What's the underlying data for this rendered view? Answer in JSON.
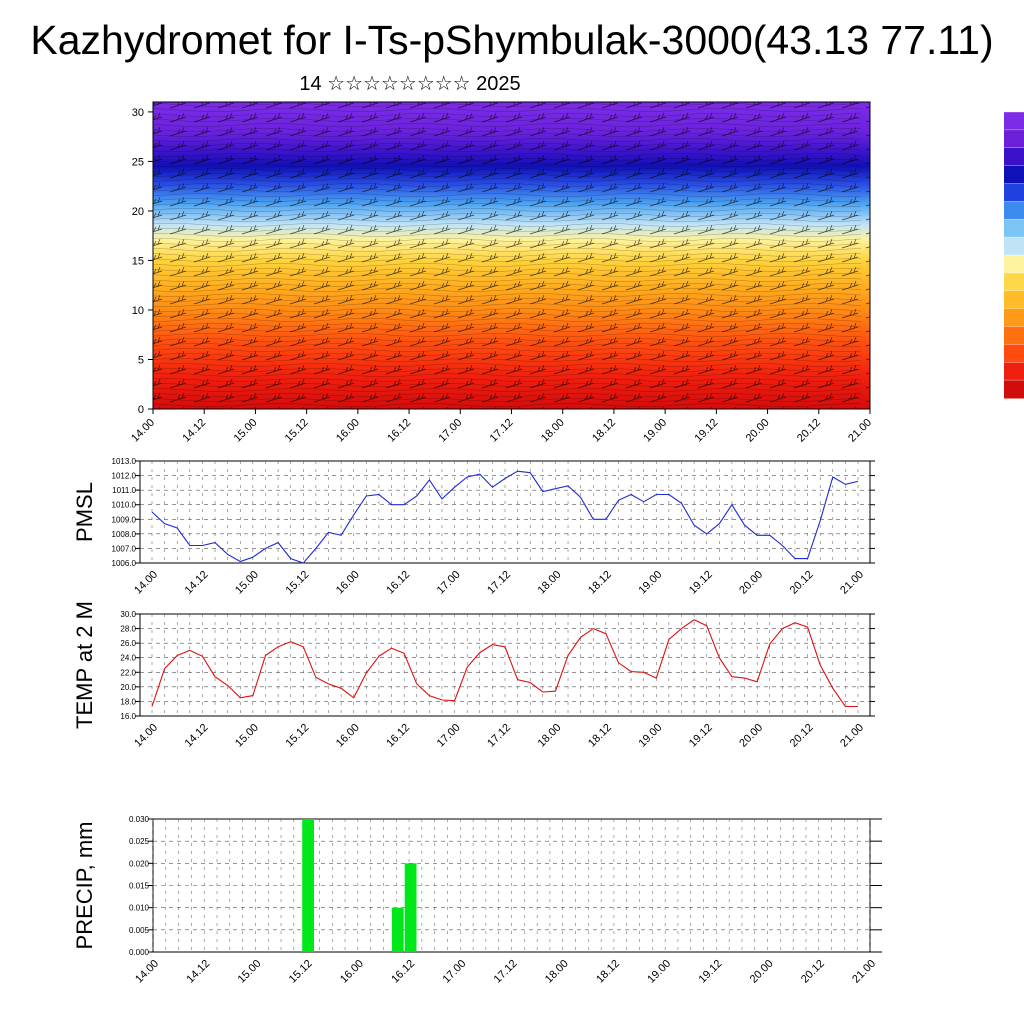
{
  "page": {
    "title": "Kazhydromet for I-Ts-pShymbulak-3000(43.13 77.11)",
    "subtitle": "14 ☆☆☆☆☆☆☆☆ 2025"
  },
  "colors": {
    "pmsl_line": "#1f2bd6",
    "temp_line": "#e01010",
    "precip_bar": "#00e81a",
    "grid": "#555555"
  },
  "time_axis": {
    "labels": [
      "14.00",
      "14.12",
      "15.00",
      "15.12",
      "16.00",
      "16.12",
      "17.00",
      "17.12",
      "18.00",
      "18.12",
      "19.00",
      "19.12",
      "20.00",
      "20.12",
      "21.00"
    ]
  },
  "chart_data": [
    {
      "type": "heatmap",
      "name": "cross-section",
      "x_labels": [
        "14.00",
        "14.12",
        "15.00",
        "15.12",
        "16.00",
        "16.12",
        "17.00",
        "17.12",
        "18.00",
        "18.12",
        "19.00",
        "19.12",
        "20.00",
        "20.12",
        "21.00"
      ],
      "y_ticks": [
        0,
        5,
        10,
        15,
        20,
        25,
        30
      ],
      "ylim": [
        0,
        31
      ],
      "colorbar": [
        "#7c2be6",
        "#6b1fd6",
        "#3a10c8",
        "#1010b8",
        "#2040e0",
        "#3c8cf0",
        "#7cc4f4",
        "#bfe4f8",
        "#fff3a0",
        "#ffd84a",
        "#ffbb28",
        "#ff9a18",
        "#ff7010",
        "#ff4a10",
        "#f02010",
        "#d00c0c"
      ]
    },
    {
      "type": "line",
      "ylabel": "PMSL",
      "ylim": [
        1006.0,
        1013.0
      ],
      "y_ticks": [
        "1006.0",
        "1007.0",
        "1008.0",
        "1009.0",
        "1010.0",
        "1011.0",
        "1012.0",
        "1013.0"
      ],
      "x_labels": [
        "14.00",
        "14.12",
        "15.00",
        "15.12",
        "16.00",
        "16.12",
        "17.00",
        "17.12",
        "18.00",
        "18.12",
        "19.00",
        "19.12",
        "20.00",
        "20.12",
        "21.00"
      ],
      "series": [
        {
          "values": [
            1009.5,
            1008.7,
            1008.4,
            1007.2,
            1007.2,
            1007.4,
            1006.6,
            1006.1,
            1006.4,
            1007.0,
            1007.4,
            1006.3,
            1006.0,
            1007.0,
            1008.1,
            1007.9,
            1009.3,
            1010.6,
            1010.7,
            1010.0,
            1010.0,
            1010.6,
            1011.7,
            1010.4,
            1011.2,
            1011.9,
            1012.1,
            1011.2,
            1011.8,
            1012.3,
            1012.2,
            1010.9,
            1011.1,
            1011.3,
            1010.5,
            1009.0,
            1009.0,
            1010.3,
            1010.7,
            1010.2,
            1010.7,
            1010.7,
            1010.1,
            1008.6,
            1008.0,
            1008.7,
            1010.0,
            1008.6,
            1007.9,
            1007.9,
            1007.2,
            1006.3,
            1006.3,
            1008.9,
            1011.9,
            1011.4,
            1011.6
          ]
        }
      ]
    },
    {
      "type": "line",
      "ylabel": "TEMP at 2 M",
      "ylim": [
        16.0,
        30.0
      ],
      "y_ticks": [
        "16.0",
        "18.0",
        "20.0",
        "22.0",
        "24.0",
        "26.0",
        "28.0",
        "30.0"
      ],
      "x_labels": [
        "14.00",
        "14.12",
        "15.00",
        "15.12",
        "16.00",
        "16.12",
        "17.00",
        "17.12",
        "18.00",
        "18.12",
        "19.00",
        "19.12",
        "20.00",
        "20.12",
        "21.00"
      ],
      "series": [
        {
          "values": [
            17.3,
            22.5,
            24.3,
            25.0,
            24.2,
            21.4,
            20.2,
            18.5,
            18.8,
            24.3,
            25.5,
            26.2,
            25.5,
            21.3,
            20.4,
            19.8,
            18.5,
            21.9,
            24.2,
            25.3,
            24.6,
            20.4,
            18.8,
            18.2,
            18.1,
            22.7,
            24.7,
            25.8,
            25.5,
            21.0,
            20.6,
            19.3,
            19.4,
            24.3,
            26.8,
            28.0,
            27.3,
            23.3,
            22.1,
            22.0,
            21.2,
            26.5,
            28.0,
            29.2,
            28.4,
            24.0,
            21.4,
            21.2,
            20.7,
            25.9,
            28.0,
            28.8,
            28.2,
            23.0,
            19.8,
            17.3,
            17.3
          ]
        }
      ]
    },
    {
      "type": "bar",
      "ylabel": "PRECIP, mm",
      "ylim": [
        0,
        0.03
      ],
      "y_ticks": [
        "0.000",
        "0.005",
        "0.010",
        "0.015",
        "0.020",
        "0.025",
        "0.030"
      ],
      "x_labels": [
        "14.00",
        "14.12",
        "15.00",
        "15.12",
        "16.00",
        "16.12",
        "17.00",
        "17.12",
        "18.00",
        "18.12",
        "19.00",
        "19.12",
        "20.00",
        "20.12",
        "21.00"
      ],
      "bars": [
        {
          "step": 12,
          "value": 0.03
        },
        {
          "step": 19,
          "value": 0.01
        },
        {
          "step": 20,
          "value": 0.02
        }
      ]
    }
  ]
}
